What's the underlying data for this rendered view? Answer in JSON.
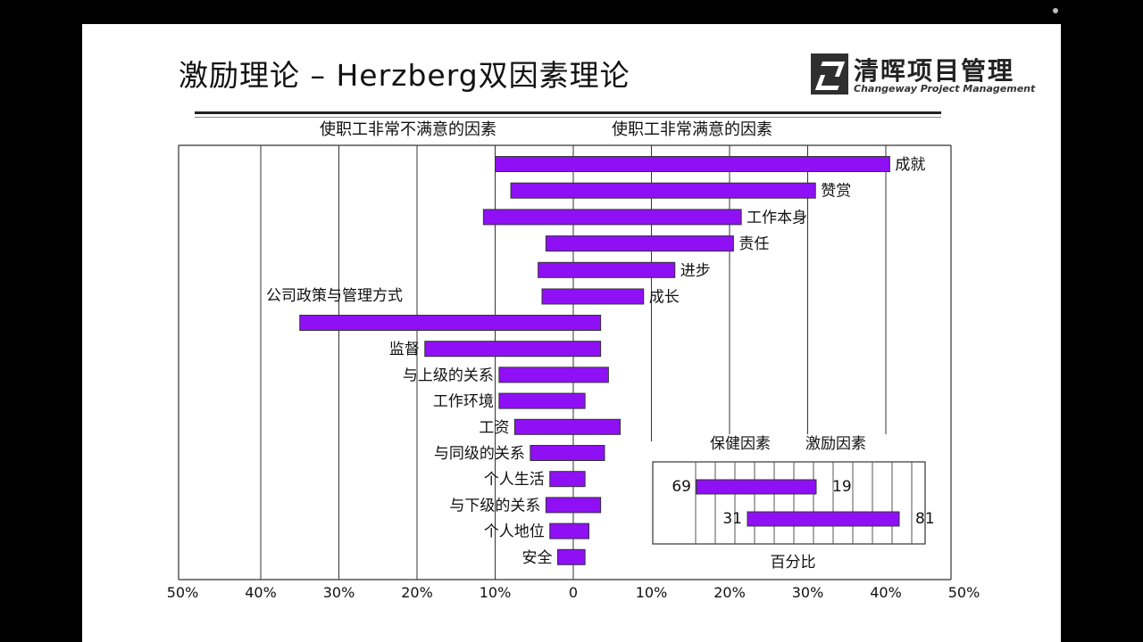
{
  "slide": {
    "title": "激励理论 – Herzberg双因素理论",
    "logo_cn": "清晖项目管理",
    "logo_en": "Changeway Project Management"
  },
  "chart_data": [
    {
      "type": "bar",
      "orientation": "horizontal-diverging",
      "left_heading": "使职工非常不满意的因素",
      "right_heading": "使职工非常满意的因素",
      "xlim": [
        -50,
        50
      ],
      "x_tick_labels": [
        "50%",
        "40%",
        "30%",
        "20%",
        "10%",
        "0",
        "10%",
        "20%",
        "30%",
        "40%",
        "50%"
      ],
      "categories": [
        "成就",
        "赞赏",
        "工作本身",
        "责任",
        "进步",
        "成长",
        "公司政策与管理方式",
        "监督",
        "与上级的关系",
        "工作环境",
        "工资",
        "与同级的关系",
        "个人生活",
        "与下级的关系",
        "个人地位",
        "安全"
      ],
      "label_side": [
        "right",
        "right",
        "right",
        "right",
        "right",
        "right",
        "above-left",
        "left",
        "left",
        "left",
        "left",
        "left",
        "left",
        "left",
        "left",
        "left"
      ],
      "series": [
        {
          "values_low": [
            -10,
            -8,
            -11.5,
            -3.5,
            -4.5,
            -4,
            -35,
            -19,
            -9.5,
            -9.5,
            -7.5,
            -5.5,
            -3,
            -3.5,
            -3,
            -2
          ]
        },
        {
          "values_high": [
            40.5,
            31,
            21.5,
            20.5,
            13,
            9,
            3.5,
            3.5,
            4.5,
            1.5,
            6,
            4,
            1.5,
            3.5,
            2,
            1.5
          ]
        }
      ],
      "bar_color": "#8f10f5",
      "grid": true
    },
    {
      "type": "bar",
      "orientation": "horizontal-diverging",
      "legend": [
        "保健因素",
        "激励因素"
      ],
      "xlabel": "百分比",
      "rows": [
        {
          "left_value": "69",
          "right_value": "19"
        },
        {
          "left_value": "31",
          "right_value": "81"
        }
      ],
      "values": [
        [
          69,
          19
        ],
        [
          31,
          81
        ]
      ],
      "bar_color": "#8f10f5",
      "grid": true
    }
  ]
}
